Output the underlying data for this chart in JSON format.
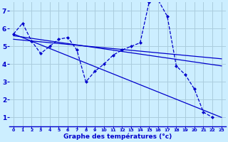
{
  "xlabel": "Graphe des températures (°c)",
  "background_color": "#cceeff",
  "grid_color": "#aaccdd",
  "line_color": "#0000cc",
  "xlim": [
    -0.5,
    23.5
  ],
  "ylim": [
    0.5,
    7.5
  ],
  "yticks": [
    1,
    2,
    3,
    4,
    5,
    6,
    7
  ],
  "xticks": [
    0,
    1,
    2,
    3,
    4,
    5,
    6,
    7,
    8,
    9,
    10,
    11,
    12,
    13,
    14,
    15,
    16,
    17,
    18,
    19,
    20,
    21,
    22,
    23
  ],
  "main_series": {
    "x": [
      0,
      1,
      2,
      3,
      4,
      5,
      6,
      7,
      8,
      9,
      10,
      11,
      12,
      13,
      14,
      15,
      16,
      17,
      18,
      19,
      20,
      21,
      22
    ],
    "y": [
      5.7,
      6.3,
      5.3,
      4.6,
      5.0,
      5.4,
      5.5,
      4.8,
      3.0,
      3.6,
      4.0,
      4.5,
      4.8,
      5.0,
      5.2,
      7.5,
      7.6,
      6.7,
      3.9,
      3.4,
      2.6,
      1.3,
      1.0
    ]
  },
  "trend_lines": [
    {
      "x": [
        0,
        23
      ],
      "y": [
        5.7,
        1.0
      ]
    },
    {
      "x": [
        0,
        23
      ],
      "y": [
        5.6,
        3.9
      ]
    },
    {
      "x": [
        0,
        23
      ],
      "y": [
        5.4,
        4.3
      ]
    }
  ]
}
